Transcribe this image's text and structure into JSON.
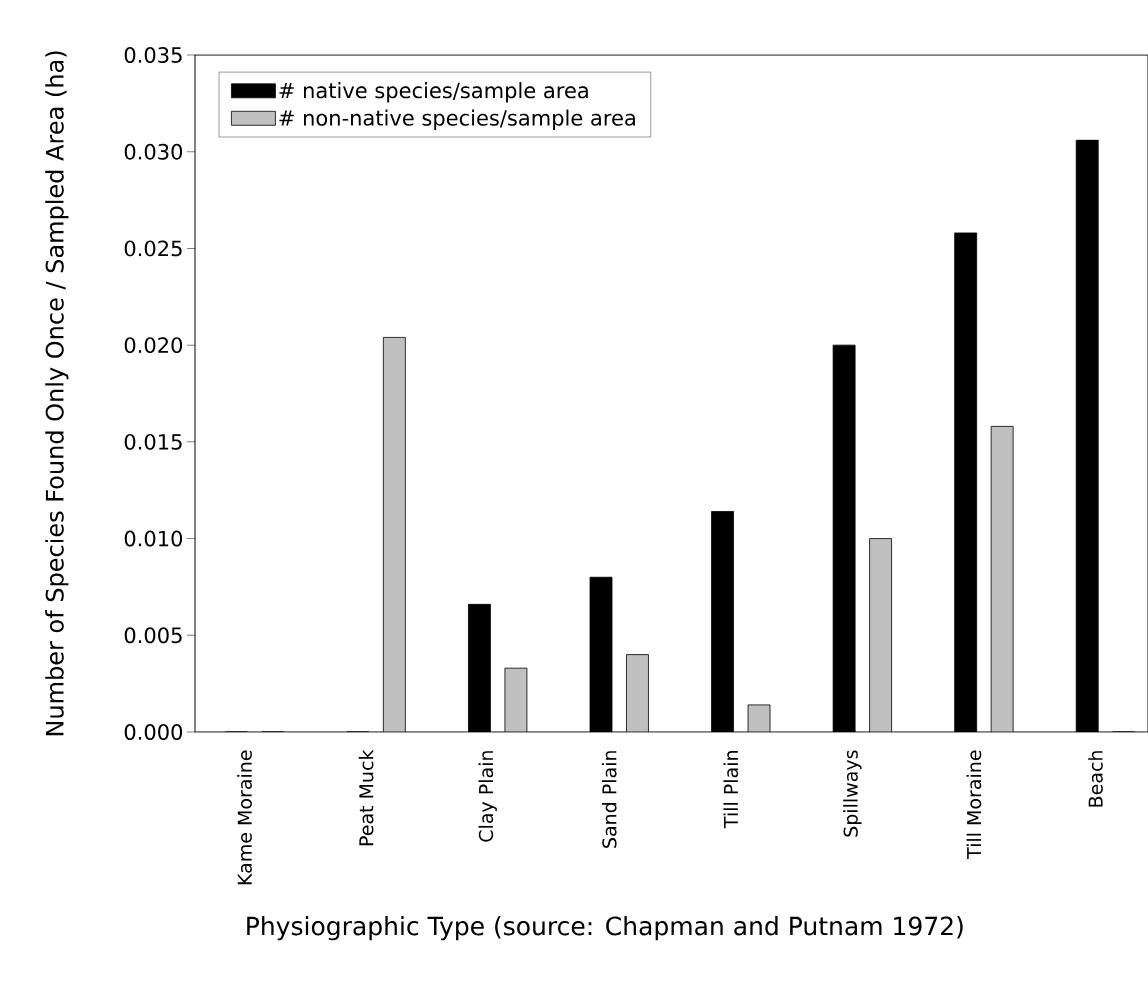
{
  "chart_data": {
    "type": "bar",
    "xlabel": "Physiographic Type (source: Chapman and Putnam 1972)",
    "ylabel": "Number of Species Found Only Once / Sampled Area (ha)",
    "categories": [
      "Kame Moraine",
      "Peat Muck",
      "Clay Plain",
      "Sand Plain",
      "Till Plain",
      "Spillways",
      "Till Moraine",
      "Beach"
    ],
    "series": [
      {
        "name": "# native species/sample area",
        "color": "#000000",
        "values": [
          0,
          0,
          0.0066,
          0.008,
          0.0114,
          0.02,
          0.0258,
          0.0306
        ]
      },
      {
        "name": "# non-native species/sample area",
        "color": "#c0c0c0",
        "values": [
          0,
          0.0204,
          0.0033,
          0.004,
          0.0014,
          0.01,
          0.0158,
          0
        ]
      }
    ],
    "ylim": [
      0,
      0.035
    ],
    "yticks": [
      {
        "value": 0,
        "label": "0.000"
      },
      {
        "value": 0.005,
        "label": "0.005"
      },
      {
        "value": 0.01,
        "label": "0.010"
      },
      {
        "value": 0.015,
        "label": "0.015"
      },
      {
        "value": 0.02,
        "label": "0.020"
      },
      {
        "value": 0.025,
        "label": "0.025"
      },
      {
        "value": 0.03,
        "label": "0.030"
      },
      {
        "value": 0.035,
        "label": "0.035"
      }
    ],
    "legend": "top left",
    "grid": false
  }
}
